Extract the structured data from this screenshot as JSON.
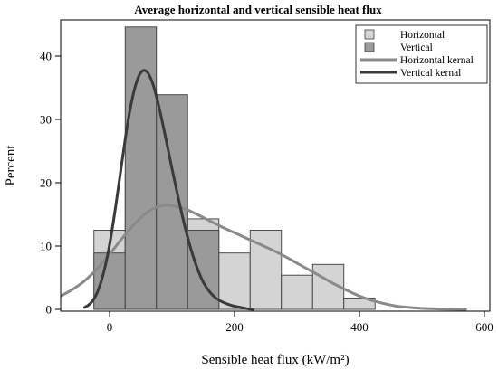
{
  "chart_data": {
    "type": "bar",
    "title": "Average horizontal and vertical sensible heat flux",
    "xlabel": "Sensible heat flux (kW/m²)",
    "ylabel": "Percent",
    "xlim": [
      -80,
      600
    ],
    "ylim": [
      0,
      45
    ],
    "x_ticks": [
      0,
      200,
      400,
      600
    ],
    "y_ticks": [
      0,
      10,
      20,
      30,
      40
    ],
    "legend_position": "top-right",
    "grid": false,
    "bin_width": 50,
    "series": [
      {
        "name": "Horizontal",
        "kind": "histogram",
        "color": "#d4d4d4",
        "bins": [
          {
            "x0": -25,
            "x1": 25,
            "value": 12.5
          },
          {
            "x0": 25,
            "x1": 75,
            "value": 21.4
          },
          {
            "x0": 75,
            "x1": 125,
            "value": 16.0
          },
          {
            "x0": 125,
            "x1": 175,
            "value": 14.3
          },
          {
            "x0": 175,
            "x1": 225,
            "value": 8.9
          },
          {
            "x0": 225,
            "x1": 275,
            "value": 12.5
          },
          {
            "x0": 275,
            "x1": 325,
            "value": 5.4
          },
          {
            "x0": 325,
            "x1": 375,
            "value": 7.1
          },
          {
            "x0": 375,
            "x1": 425,
            "value": 1.8
          }
        ]
      },
      {
        "name": "Vertical",
        "kind": "histogram",
        "color": "#9a9a9a",
        "bins": [
          {
            "x0": -25,
            "x1": 25,
            "value": 8.9
          },
          {
            "x0": 25,
            "x1": 75,
            "value": 44.6
          },
          {
            "x0": 75,
            "x1": 125,
            "value": 33.9
          },
          {
            "x0": 125,
            "x1": 175,
            "value": 12.5
          }
        ]
      },
      {
        "name": "Horizontal kernal",
        "kind": "line",
        "color": "#8a8a8a",
        "x": [
          -80,
          -60,
          -40,
          -20,
          0,
          20,
          40,
          60,
          80,
          100,
          120,
          140,
          160,
          180,
          200,
          220,
          240,
          260,
          280,
          300,
          320,
          340,
          360,
          380,
          400,
          420,
          440,
          460,
          480,
          500,
          520,
          540,
          570
        ],
        "y": [
          2.0,
          3.1,
          4.5,
          6.4,
          8.7,
          11.2,
          13.5,
          15.3,
          16.3,
          16.4,
          15.9,
          15.0,
          14.0,
          13.0,
          12.1,
          11.2,
          10.3,
          9.4,
          8.4,
          7.3,
          6.2,
          5.1,
          4.0,
          3.0,
          2.1,
          1.4,
          0.9,
          0.5,
          0.3,
          0.15,
          0.08,
          0.03,
          0.0
        ]
      },
      {
        "name": "Vertical kernal",
        "kind": "line",
        "color": "#3a3a3a",
        "x": [
          -40,
          -30,
          -20,
          -10,
          0,
          10,
          20,
          30,
          40,
          50,
          60,
          70,
          80,
          90,
          100,
          110,
          120,
          130,
          140,
          150,
          160,
          170,
          180,
          190,
          200,
          210,
          220,
          230
        ],
        "y": [
          0.3,
          1.0,
          2.6,
          5.6,
          10.2,
          16.4,
          23.4,
          30.0,
          34.8,
          37.4,
          37.5,
          35.4,
          31.6,
          27.0,
          22.2,
          17.6,
          13.3,
          9.6,
          6.6,
          4.3,
          2.8,
          1.8,
          1.2,
          0.8,
          0.5,
          0.3,
          0.1,
          0.0
        ]
      }
    ]
  }
}
